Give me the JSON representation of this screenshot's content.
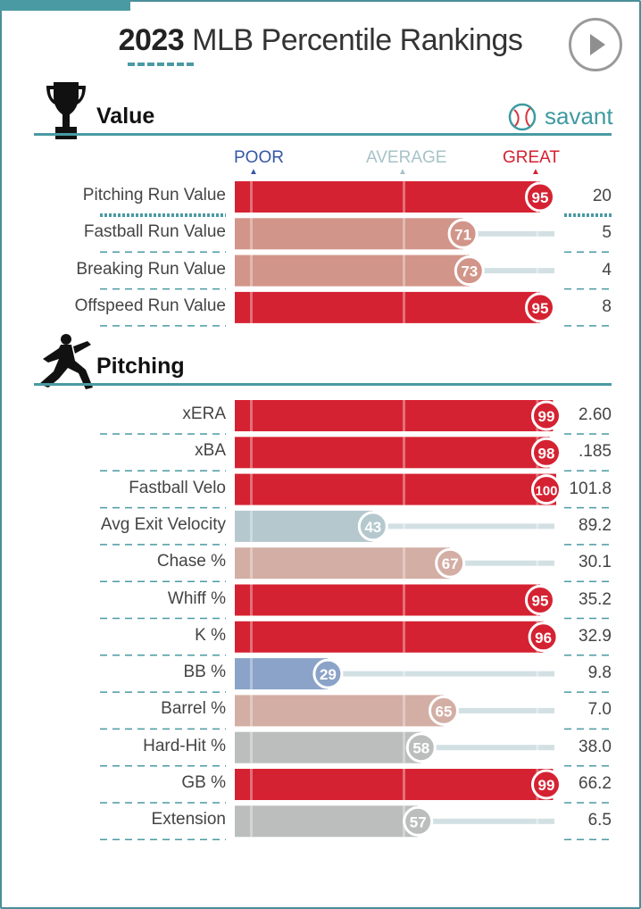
{
  "header": {
    "title_year": "2023",
    "title_rest": "MLB Percentile Rankings"
  },
  "brand": {
    "name": "savant"
  },
  "scale": {
    "poor": "POOR",
    "average": "AVERAGE",
    "great": "GREAT"
  },
  "colors": {
    "accent": "#4a9aa3",
    "great": "#d42230",
    "poor": "#3557a6",
    "average_gray": "#b8bcbd"
  },
  "chart_data": [
    {
      "type": "bar",
      "title": "Value",
      "metric_kind": "percentile",
      "xlim": [
        0,
        100
      ],
      "categories": [
        "Pitching Run Value",
        "Fastball Run Value",
        "Breaking Run Value",
        "Offspeed Run Value"
      ],
      "percentiles": [
        95,
        71,
        73,
        95
      ],
      "stat_values": [
        "20",
        "5",
        "4",
        "8"
      ],
      "bar_colors": [
        "#d52232",
        "#d2958a",
        "#d2958a",
        "#d52232"
      ]
    },
    {
      "type": "bar",
      "title": "Pitching",
      "metric_kind": "percentile",
      "xlim": [
        0,
        100
      ],
      "categories": [
        "xERA",
        "xBA",
        "Fastball Velo",
        "Avg Exit Velocity",
        "Chase %",
        "Whiff %",
        "K %",
        "BB %",
        "Barrel %",
        "Hard-Hit %",
        "GB %",
        "Extension"
      ],
      "percentiles": [
        99,
        98,
        100,
        43,
        67,
        95,
        96,
        29,
        65,
        58,
        99,
        57
      ],
      "stat_values": [
        "2.60",
        ".185",
        "101.8",
        "89.2",
        "30.1",
        "35.2",
        "32.9",
        "9.8",
        "7.0",
        "38.0",
        "66.2",
        "6.5"
      ],
      "bar_colors": [
        "#d52232",
        "#d52232",
        "#d52232",
        "#b4c8ce",
        "#d3aea5",
        "#d52232",
        "#d52232",
        "#8ba3c8",
        "#d3aea5",
        "#bcbebe",
        "#d52232",
        "#bcbebe"
      ]
    }
  ]
}
